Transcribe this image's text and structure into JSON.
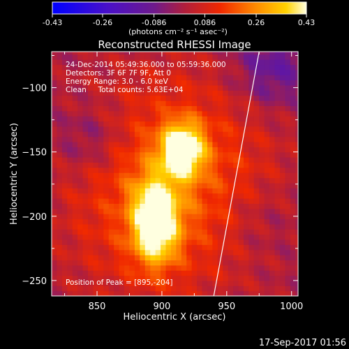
{
  "colorbar": {
    "tick_labels": [
      "-0.43",
      "-0.26",
      "-0.086",
      "0.086",
      "0.26",
      "0.43"
    ],
    "tick_values": [
      -0.43,
      -0.26,
      -0.086,
      0.086,
      0.26,
      0.43
    ],
    "range": [
      -0.43,
      0.43
    ],
    "units_label": "(photons cm⁻² s⁻¹ asec⁻²)"
  },
  "annotations": {
    "time_range": "24-Dec-2014 05:49:36.000 to 05:59:36.000",
    "detectors": "Detectors: 3F 6F 7F 9F, Att 0",
    "energy_range": "Energy Range: 3.0 - 6.0 keV",
    "method": "Clean     Total counts: 5.63E+04",
    "peak_position": "Position of Peak = [895,-204]"
  },
  "footer": {
    "timestamp": "17-Sep-2017 01:56"
  },
  "chart_data": {
    "type": "heatmap",
    "title": "Reconstructed RHESSI Image",
    "xlabel": "Heliocentric X (arcsec)",
    "ylabel": "Heliocentric Y (arcsec)",
    "xlim": [
      815,
      1005
    ],
    "ylim": [
      -262,
      -72
    ],
    "xticks": [
      850,
      900,
      950,
      1000
    ],
    "yticks": [
      -100,
      -150,
      -200,
      -250
    ],
    "xtick_labels": [
      "850",
      "900",
      "950",
      "1000"
    ],
    "ytick_labels": [
      "−100",
      "−150",
      "−200",
      "−250"
    ],
    "value_range": [
      -0.43,
      0.43
    ],
    "colormap": "rhessi (blue-purple-red-orange-yellow-white)",
    "pixel_size_arcsec": 4,
    "peak_xy": [
      895,
      -204
    ],
    "sources": [
      {
        "x": 916,
        "y": -148,
        "amplitude": 0.43,
        "sigma_x": 11,
        "sigma_y": 14
      },
      {
        "x": 895,
        "y": -204,
        "amplitude": 0.43,
        "sigma_x": 12,
        "sigma_y": 22
      }
    ],
    "limb_line": {
      "color": "#ffffff",
      "points": [
        [
          940,
          -262
        ],
        [
          975,
          -72
        ]
      ]
    }
  }
}
